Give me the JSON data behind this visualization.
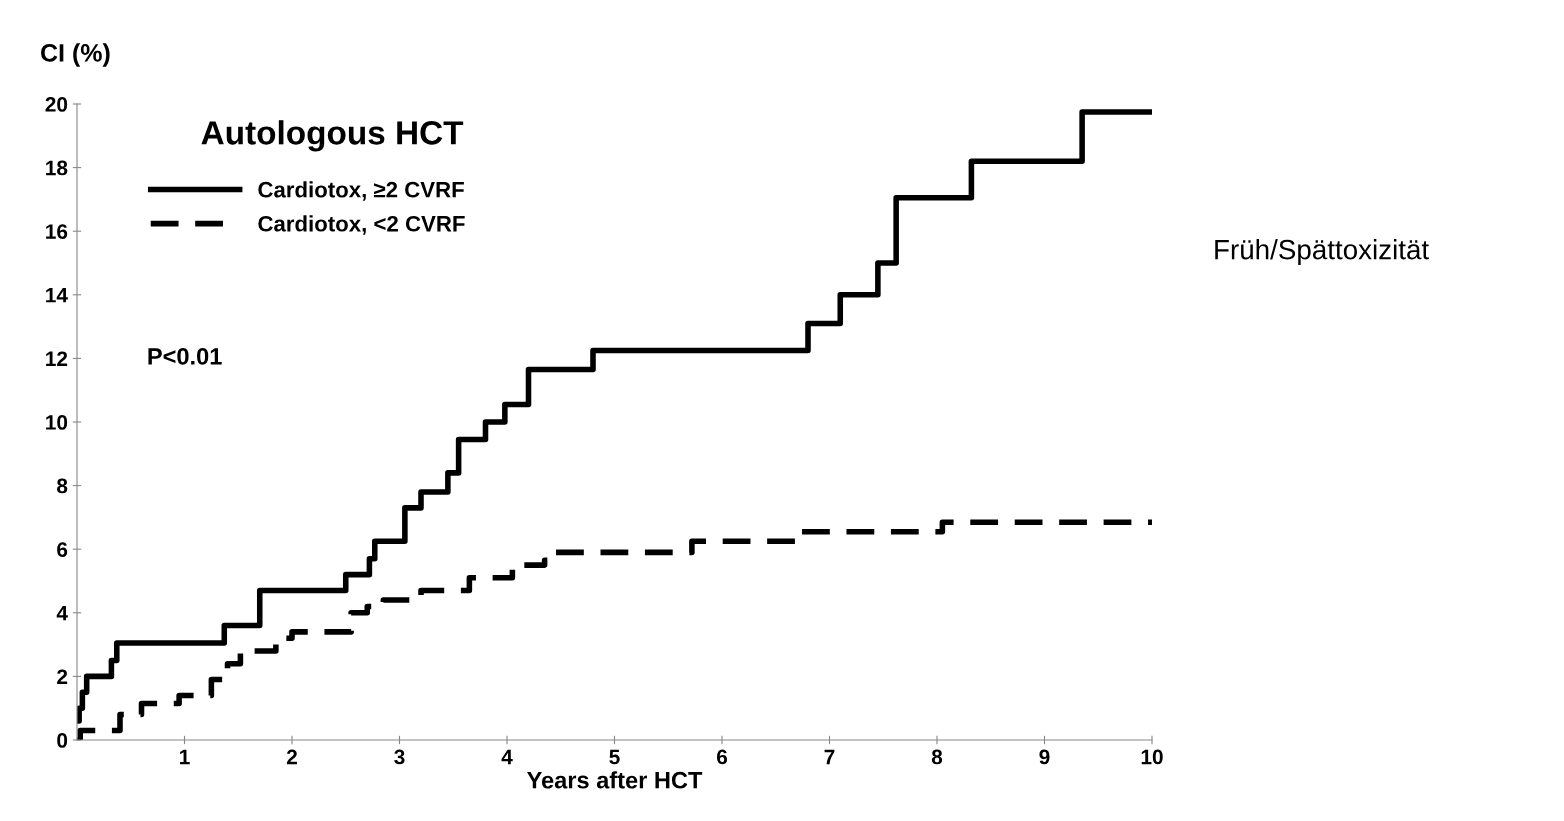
{
  "chart_data": {
    "type": "step",
    "title": "Autologous HCT",
    "xlabel": "Years after HCT",
    "ylabel": "CI (%)",
    "series": [
      {
        "name": "Cardiotox, ≥2 CVRF",
        "color": "#000000",
        "line_style": "solid",
        "x": [
          0,
          0.02,
          0.05,
          0.09,
          0.32,
          0.37,
          1.37,
          1.7,
          2.5,
          2.72,
          2.77,
          3.05,
          3.2,
          3.45,
          3.55,
          3.8,
          3.98,
          4.2,
          4.8,
          6.8,
          7.1,
          7.45,
          7.62,
          8.32,
          9.35,
          10
        ],
        "values": [
          0.6,
          1.0,
          1.5,
          2.0,
          2.5,
          3.05,
          3.6,
          4.7,
          5.2,
          5.7,
          6.25,
          7.3,
          7.8,
          8.4,
          9.45,
          10.0,
          10.55,
          11.65,
          12.25,
          13.1,
          14.0,
          15.0,
          17.05,
          18.2,
          19.75,
          19.75
        ]
      },
      {
        "name": "Cardiotox, <2 CVRF",
        "color": "#000000",
        "line_style": "dashed",
        "x": [
          0,
          0.03,
          0.4,
          0.6,
          0.95,
          1.25,
          1.4,
          1.52,
          1.85,
          2.0,
          2.55,
          2.7,
          2.85,
          3.2,
          3.65,
          4.05,
          4.35,
          4.45,
          5.72,
          6.73,
          8.05,
          10
        ],
        "values": [
          0.0,
          0.3,
          0.8,
          1.15,
          1.4,
          1.9,
          2.4,
          2.8,
          3.2,
          3.4,
          4.0,
          4.2,
          4.4,
          4.7,
          5.1,
          5.5,
          5.65,
          5.9,
          6.25,
          6.55,
          6.85,
          6.85
        ]
      }
    ],
    "xlim": [
      0,
      10
    ],
    "xticks": [
      1,
      2,
      3,
      4,
      5,
      6,
      7,
      8,
      9,
      10
    ],
    "ylim": [
      0,
      20
    ],
    "yticks": [
      0,
      2,
      4,
      6,
      8,
      10,
      12,
      14,
      16,
      18,
      20
    ],
    "grid": false,
    "legend": "top left",
    "annotations": [
      "P<0.01",
      "Früh/Spättoxizität"
    ]
  }
}
